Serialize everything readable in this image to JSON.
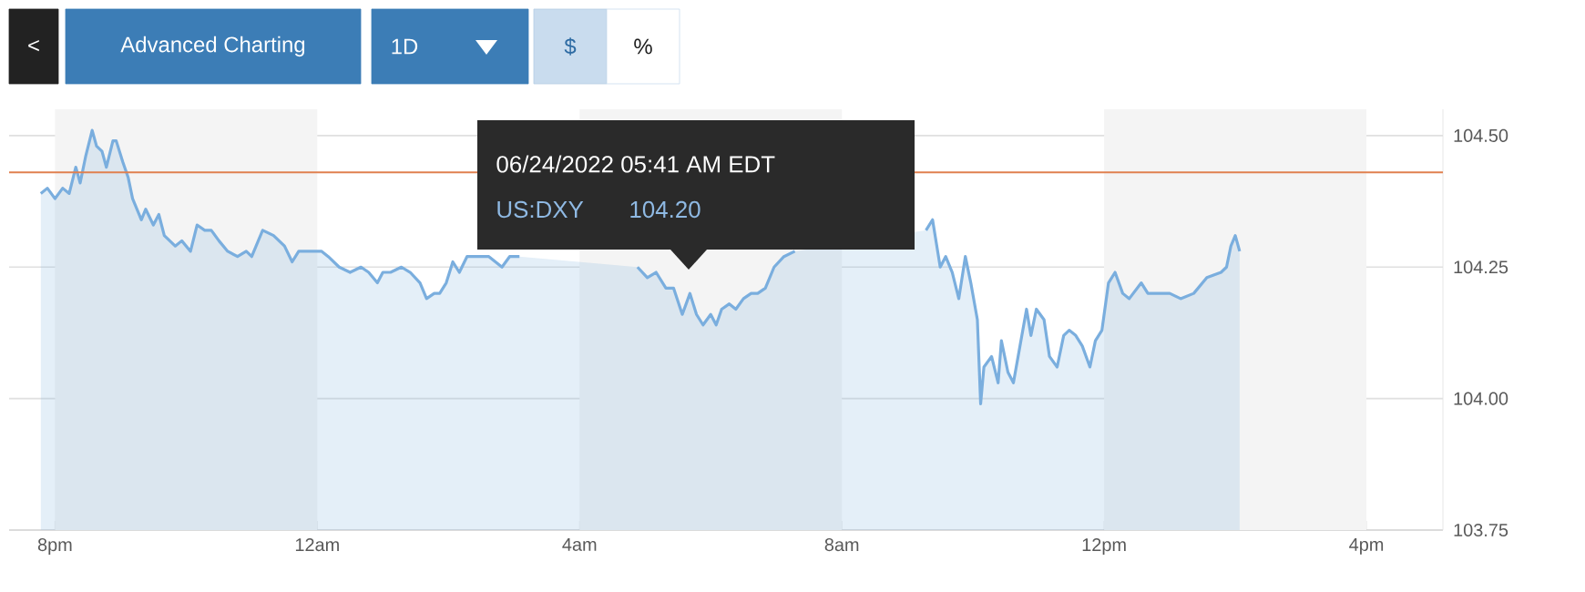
{
  "chart_data": {
    "type": "area",
    "x": [
      "2022-06-23T19:47",
      "2022-06-23T19:53",
      "2022-06-23T20:00",
      "2022-06-23T20:07",
      "2022-06-23T20:13",
      "2022-06-23T20:19",
      "2022-06-23T20:23",
      "2022-06-23T20:28",
      "2022-06-23T20:34",
      "2022-06-23T20:38",
      "2022-06-23T20:43",
      "2022-06-23T20:47",
      "2022-06-23T20:53",
      "2022-06-23T20:56",
      "2022-06-23T21:02",
      "2022-06-23T21:07",
      "2022-06-23T21:11",
      "2022-06-23T21:19",
      "2022-06-23T21:23",
      "2022-06-23T21:30",
      "2022-06-23T21:35",
      "2022-06-23T21:40",
      "2022-06-23T21:50",
      "2022-06-23T21:56",
      "2022-06-23T22:04",
      "2022-06-23T22:10",
      "2022-06-23T22:17",
      "2022-06-23T22:23",
      "2022-06-23T22:30",
      "2022-06-23T22:38",
      "2022-06-23T22:47",
      "2022-06-23T22:55",
      "2022-06-23T23:00",
      "2022-06-23T23:10",
      "2022-06-23T23:20",
      "2022-06-23T23:30",
      "2022-06-23T23:37",
      "2022-06-23T23:43",
      "2022-06-23T23:53",
      "2022-06-24T00:04",
      "2022-06-24T00:10",
      "2022-06-24T00:20",
      "2022-06-24T00:30",
      "2022-06-24T00:40",
      "2022-06-24T00:47",
      "2022-06-24T00:55",
      "2022-06-24T01:00",
      "2022-06-24T01:07",
      "2022-06-24T01:17",
      "2022-06-24T01:25",
      "2022-06-24T01:34",
      "2022-06-24T01:40",
      "2022-06-24T01:47",
      "2022-06-24T01:52",
      "2022-06-24T01:58",
      "2022-06-24T02:04",
      "2022-06-24T02:10",
      "2022-06-24T02:17",
      "2022-06-24T02:26",
      "2022-06-24T02:37",
      "2022-06-24T02:49",
      "2022-06-24T02:56",
      "2022-06-24T03:05",
      "2022-06-24T03:17",
      "2022-06-24T03:30",
      "2022-06-24T03:40",
      "2022-06-24T03:50",
      "2022-06-24T04:00",
      "2022-06-24T04:11",
      "2022-06-24T04:23",
      "2022-06-24T04:37",
      "2022-06-24T04:45",
      "2022-06-24T04:53",
      "2022-06-24T05:02",
      "2022-06-24T05:10",
      "2022-06-24T05:19",
      "2022-06-24T05:26",
      "2022-06-24T05:34",
      "2022-06-24T05:41",
      "2022-06-24T05:47",
      "2022-06-24T05:53",
      "2022-06-24T06:00",
      "2022-06-24T06:05",
      "2022-06-24T06:10",
      "2022-06-24T06:17",
      "2022-06-24T06:23",
      "2022-06-24T06:30",
      "2022-06-24T06:37",
      "2022-06-24T06:43",
      "2022-06-24T06:50",
      "2022-06-24T06:58",
      "2022-06-24T07:07",
      "2022-06-24T07:17",
      "2022-06-24T07:26",
      "2022-06-24T07:37",
      "2022-06-24T07:47",
      "2022-06-24T07:56",
      "2022-06-24T08:07",
      "2022-06-24T08:17",
      "2022-06-24T08:26",
      "2022-06-24T08:37",
      "2022-06-24T08:47",
      "2022-06-24T08:55",
      "2022-06-24T09:04",
      "2022-06-24T09:10",
      "2022-06-24T09:17",
      "2022-06-24T09:23",
      "2022-06-24T09:30",
      "2022-06-24T09:35",
      "2022-06-24T09:41",
      "2022-06-24T09:47",
      "2022-06-24T09:53",
      "2022-06-24T09:58",
      "2022-06-24T10:04",
      "2022-06-24T10:07",
      "2022-06-24T10:10",
      "2022-06-24T10:17",
      "2022-06-24T10:23",
      "2022-06-24T10:26",
      "2022-06-24T10:32",
      "2022-06-24T10:37",
      "2022-06-24T10:43",
      "2022-06-24T10:49",
      "2022-06-24T10:53",
      "2022-06-24T10:58",
      "2022-06-24T11:05",
      "2022-06-24T11:10",
      "2022-06-24T11:17",
      "2022-06-24T11:23",
      "2022-06-24T11:28",
      "2022-06-24T11:34",
      "2022-06-24T11:40",
      "2022-06-24T11:47",
      "2022-06-24T11:52",
      "2022-06-24T11:58",
      "2022-06-24T12:04",
      "2022-06-24T12:10",
      "2022-06-24T12:17",
      "2022-06-24T12:23",
      "2022-06-24T12:34",
      "2022-06-24T12:40",
      "2022-06-24T12:50",
      "2022-06-24T13:00",
      "2022-06-24T13:10",
      "2022-06-24T13:22",
      "2022-06-24T13:34",
      "2022-06-24T13:47",
      "2022-06-24T13:52",
      "2022-06-24T13:56",
      "2022-06-24T14:00",
      "2022-06-24T14:04"
    ],
    "series": [
      {
        "color": "#7aaede",
        "values": [
          104.39,
          104.4,
          104.38,
          104.4,
          104.39,
          104.44,
          104.41,
          104.46,
          104.51,
          104.48,
          104.47,
          104.44,
          104.49,
          104.49,
          104.45,
          104.42,
          104.38,
          104.34,
          104.36,
          104.33,
          104.35,
          104.31,
          104.29,
          104.3,
          104.28,
          104.33,
          104.32,
          104.32,
          104.3,
          104.28,
          104.27,
          104.28,
          104.27,
          104.32,
          104.31,
          104.29,
          104.26,
          104.28,
          104.28,
          104.28,
          104.27,
          104.25,
          104.24,
          104.25,
          104.24,
          104.22,
          104.24,
          104.24,
          104.25,
          104.24,
          104.22,
          104.19,
          104.2,
          104.2,
          104.22,
          104.26,
          104.24,
          104.27,
          104.27,
          104.27,
          104.25,
          104.27,
          104.27,
          null,
          null,
          null,
          null,
          null,
          null,
          null,
          null,
          null,
          104.25,
          104.23,
          104.24,
          104.21,
          104.21,
          104.16,
          104.2,
          104.16,
          104.14,
          104.16,
          104.14,
          104.17,
          104.18,
          104.17,
          104.19,
          104.2,
          104.2,
          104.21,
          104.25,
          104.27,
          104.28,
          null,
          null,
          null,
          null,
          null,
          null,
          null,
          null,
          null,
          null,
          null,
          null,
          104.32,
          104.34,
          104.25,
          104.27,
          104.24,
          104.19,
          104.27,
          104.22,
          104.15,
          103.99,
          104.06,
          104.08,
          104.03,
          104.11,
          104.05,
          104.03,
          104.1,
          104.17,
          104.12,
          104.17,
          104.15,
          104.08,
          104.06,
          104.12,
          104.13,
          104.12,
          104.1,
          104.06,
          104.11,
          104.13,
          104.22,
          104.24,
          104.2,
          104.19,
          104.22,
          104.2,
          104.2,
          104.2,
          104.19,
          104.2,
          104.23,
          104.24,
          104.25,
          104.29,
          104.31,
          104.28
        ]
      }
    ],
    "xlim": [
      "2022-06-23T19:18",
      "2022-06-24T17:10"
    ],
    "ylim": [
      103.75,
      104.55
    ],
    "xticks": [
      {
        "value": "2022-06-23T20:00",
        "label": "8pm"
      },
      {
        "value": "2022-06-24T00:00",
        "label": "12am"
      },
      {
        "value": "2022-06-24T04:00",
        "label": "4am"
      },
      {
        "value": "2022-06-24T08:00",
        "label": "8am"
      },
      {
        "value": "2022-06-24T12:00",
        "label": "12pm"
      },
      {
        "value": "2022-06-24T16:00",
        "label": "4pm"
      }
    ],
    "yticks": [
      {
        "value": 103.75,
        "label": "103.75"
      },
      {
        "value": 104.0,
        "label": "104.00"
      },
      {
        "value": 104.25,
        "label": "104.25"
      },
      {
        "value": 104.5,
        "label": "104.50"
      }
    ],
    "grid": "y",
    "ref_lines": [
      {
        "axis": "y",
        "value": 104.43,
        "color": "#e0804f"
      }
    ],
    "bands": [
      {
        "axis": "x",
        "from": "2022-06-23T20:00",
        "to": "2022-06-24T00:00",
        "color": "#f4f4f4"
      },
      {
        "axis": "x",
        "from": "2022-06-24T04:00",
        "to": "2022-06-24T08:00",
        "color": "#f4f4f4"
      },
      {
        "axis": "x",
        "from": "2022-06-24T12:00",
        "to": "2022-06-24T16:00",
        "color": "#f4f4f4"
      }
    ],
    "annotations": [
      "<",
      "Advanced Charting",
      "1D",
      "$",
      "%",
      "06/24/2022 05:41 AM EDT",
      "US:DXY",
      "104.20"
    ]
  }
}
